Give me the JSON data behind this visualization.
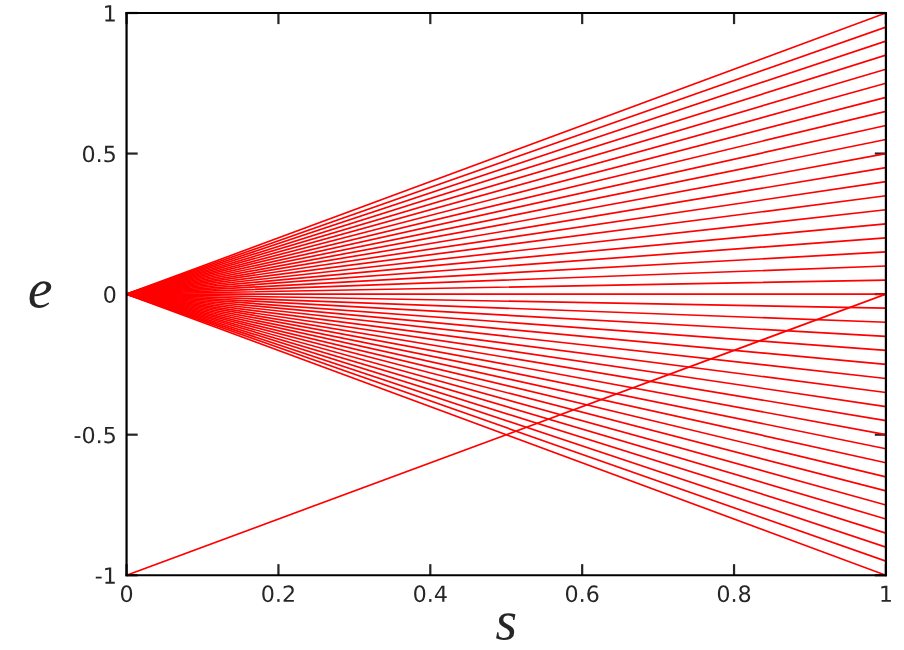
{
  "chart_data": {
    "type": "line",
    "xlabel": "s",
    "ylabel": "e",
    "x": [
      0,
      1
    ],
    "xlim": [
      0,
      1
    ],
    "ylim": [
      -1,
      1
    ],
    "xticks": [
      0,
      {
        "value": 0.2,
        "label": "0.2"
      },
      {
        "value": 0.4,
        "label": "0.4"
      },
      {
        "value": 0.6,
        "label": "0.6"
      },
      {
        "value": 0.8,
        "label": "0.8"
      },
      1
    ],
    "yticks": [
      -1,
      {
        "value": -0.5,
        "label": "-0.5"
      },
      0,
      {
        "value": 0.5,
        "label": "0.5"
      },
      1
    ],
    "grid": false,
    "legend": false,
    "series": [
      {
        "color": "#ff0000",
        "values": [
          0,
          -1
        ]
      },
      {
        "color": "#ff0000",
        "values": [
          0,
          -0.95
        ]
      },
      {
        "color": "#ff0000",
        "values": [
          0,
          -0.9
        ]
      },
      {
        "color": "#ff0000",
        "values": [
          0,
          -0.85
        ]
      },
      {
        "color": "#ff0000",
        "values": [
          0,
          -0.8
        ]
      },
      {
        "color": "#ff0000",
        "values": [
          0,
          -0.75
        ]
      },
      {
        "color": "#ff0000",
        "values": [
          0,
          -0.7
        ]
      },
      {
        "color": "#ff0000",
        "values": [
          0,
          -0.65
        ]
      },
      {
        "color": "#ff0000",
        "values": [
          0,
          -0.6
        ]
      },
      {
        "color": "#ff0000",
        "values": [
          0,
          -0.55
        ]
      },
      {
        "color": "#ff0000",
        "values": [
          0,
          -0.5
        ]
      },
      {
        "color": "#ff0000",
        "values": [
          0,
          -0.45
        ]
      },
      {
        "color": "#ff0000",
        "values": [
          0,
          -0.4
        ]
      },
      {
        "color": "#ff0000",
        "values": [
          0,
          -0.35
        ]
      },
      {
        "color": "#ff0000",
        "values": [
          0,
          -0.3
        ]
      },
      {
        "color": "#ff0000",
        "values": [
          0,
          -0.25
        ]
      },
      {
        "color": "#ff0000",
        "values": [
          0,
          -0.2
        ]
      },
      {
        "color": "#ff0000",
        "values": [
          0,
          -0.15
        ]
      },
      {
        "color": "#ff0000",
        "values": [
          0,
          -0.1
        ]
      },
      {
        "color": "#ff0000",
        "values": [
          0,
          -0.05
        ]
      },
      {
        "color": "#ff0000",
        "values": [
          0,
          0
        ]
      },
      {
        "color": "#ff0000",
        "values": [
          0,
          0.05
        ]
      },
      {
        "color": "#ff0000",
        "values": [
          0,
          0.1
        ]
      },
      {
        "color": "#ff0000",
        "values": [
          0,
          0.15
        ]
      },
      {
        "color": "#ff0000",
        "values": [
          0,
          0.2
        ]
      },
      {
        "color": "#ff0000",
        "values": [
          0,
          0.25
        ]
      },
      {
        "color": "#ff0000",
        "values": [
          0,
          0.3
        ]
      },
      {
        "color": "#ff0000",
        "values": [
          0,
          0.35
        ]
      },
      {
        "color": "#ff0000",
        "values": [
          0,
          0.4
        ]
      },
      {
        "color": "#ff0000",
        "values": [
          0,
          0.45
        ]
      },
      {
        "color": "#ff0000",
        "values": [
          0,
          0.5
        ]
      },
      {
        "color": "#ff0000",
        "values": [
          0,
          0.55
        ]
      },
      {
        "color": "#ff0000",
        "values": [
          0,
          0.6
        ]
      },
      {
        "color": "#ff0000",
        "values": [
          0,
          0.65
        ]
      },
      {
        "color": "#ff0000",
        "values": [
          0,
          0.7
        ]
      },
      {
        "color": "#ff0000",
        "values": [
          0,
          0.75
        ]
      },
      {
        "color": "#ff0000",
        "values": [
          0,
          0.8
        ]
      },
      {
        "color": "#ff0000",
        "values": [
          0,
          0.85
        ]
      },
      {
        "color": "#ff0000",
        "values": [
          0,
          0.9
        ]
      },
      {
        "color": "#ff0000",
        "values": [
          0,
          0.95
        ]
      },
      {
        "color": "#ff0000",
        "values": [
          0,
          1
        ]
      },
      {
        "color": "#ff0000",
        "x": [
          0,
          1
        ],
        "values": [
          -1,
          0
        ]
      }
    ]
  }
}
